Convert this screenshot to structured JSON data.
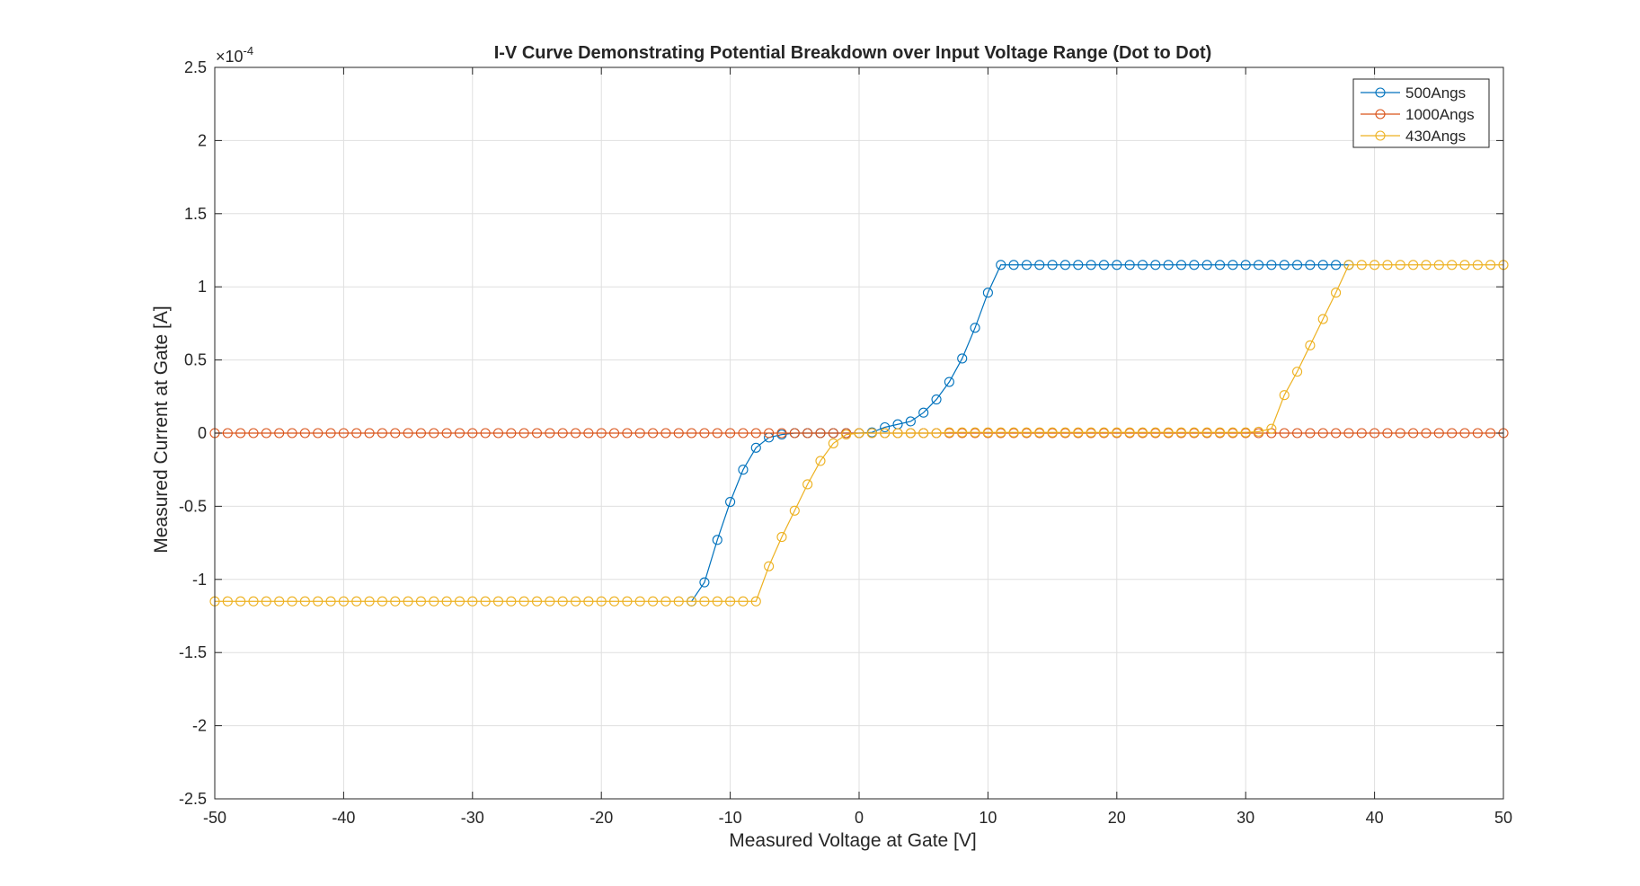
{
  "chart_data": {
    "type": "line",
    "title": "I-V Curve Demonstrating Potential Breakdown over Input Voltage Range (Dot to Dot)",
    "xlabel": "Measured Voltage at Gate [V]",
    "ylabel": "Measured Current at Gate [A]",
    "xlim": [
      -50,
      50
    ],
    "ylim": [
      -2.5,
      2.5
    ],
    "y_exponent_label": "×10",
    "y_exponent_power": "-4",
    "x_ticks": [
      -50,
      -40,
      -30,
      -20,
      -10,
      0,
      10,
      20,
      30,
      40,
      50
    ],
    "x_tick_labels": [
      "-50",
      "-40",
      "-30",
      "-20",
      "-10",
      "0",
      "10",
      "20",
      "30",
      "40",
      "50"
    ],
    "y_ticks": [
      -2.5,
      -2,
      -1.5,
      -1,
      -0.5,
      0,
      0.5,
      1,
      1.5,
      2,
      2.5
    ],
    "y_tick_labels": [
      "-2.5",
      "-2",
      "-1.5",
      "-1",
      "-0.5",
      "0",
      "0.5",
      "1",
      "1.5",
      "2",
      "2.5"
    ],
    "grid": true,
    "legend_position": "top-right",
    "series": [
      {
        "name": "500Angs",
        "color": "#0072BD",
        "marker": "circle",
        "x": [
          -13,
          -12,
          -11,
          -10,
          -9,
          -8,
          -7,
          -6,
          -5,
          -4,
          -3,
          -2,
          -1,
          0,
          1,
          2,
          3,
          4,
          5,
          6,
          7,
          8,
          9,
          10,
          11,
          12,
          13,
          14,
          15,
          16,
          17,
          18,
          19,
          20,
          21,
          22,
          23,
          24,
          25,
          26,
          27,
          28,
          29,
          30,
          31,
          32,
          33,
          34,
          35,
          36,
          37,
          38
        ],
        "y": [
          -1.15,
          -1.02,
          -0.73,
          -0.47,
          -0.25,
          -0.1,
          -0.03,
          -0.01,
          0.0,
          0.0,
          0.0,
          0.0,
          0.0,
          0.0,
          0.005,
          0.04,
          0.06,
          0.08,
          0.14,
          0.23,
          0.35,
          0.51,
          0.72,
          0.96,
          1.15,
          1.15,
          1.15,
          1.15,
          1.15,
          1.15,
          1.15,
          1.15,
          1.15,
          1.15,
          1.15,
          1.15,
          1.15,
          1.15,
          1.15,
          1.15,
          1.15,
          1.15,
          1.15,
          1.15,
          1.15,
          1.15,
          1.15,
          1.15,
          1.15,
          1.15,
          1.15,
          1.15
        ]
      },
      {
        "name": "1000Angs",
        "color": "#D95319",
        "marker": "circle",
        "x": [
          -50,
          -49,
          -48,
          -47,
          -46,
          -45,
          -44,
          -43,
          -42,
          -41,
          -40,
          -39,
          -38,
          -37,
          -36,
          -35,
          -34,
          -33,
          -32,
          -31,
          -30,
          -29,
          -28,
          -27,
          -26,
          -25,
          -24,
          -23,
          -22,
          -21,
          -20,
          -19,
          -18,
          -17,
          -16,
          -15,
          -14,
          -13,
          -12,
          -11,
          -10,
          -9,
          -8,
          -7,
          -6,
          -5,
          -4,
          -3,
          -2,
          -1,
          0,
          1,
          2,
          3,
          4,
          5,
          6,
          7,
          8,
          9,
          10,
          11,
          12,
          13,
          14,
          15,
          16,
          17,
          18,
          19,
          20,
          21,
          22,
          23,
          24,
          25,
          26,
          27,
          28,
          29,
          30,
          31,
          32,
          33,
          34,
          35,
          36,
          37,
          38,
          39,
          40,
          41,
          42,
          43,
          44,
          45,
          46,
          47,
          48,
          49,
          50
        ],
        "y": [
          0,
          0,
          0,
          0,
          0,
          0,
          0,
          0,
          0,
          0,
          0,
          0,
          0,
          0,
          0,
          0,
          0,
          0,
          0,
          0,
          0,
          0,
          0,
          0,
          0,
          0,
          0,
          0,
          0,
          0,
          0,
          0,
          0,
          0,
          0,
          0,
          0,
          0,
          0,
          0,
          0,
          0,
          0,
          0,
          0,
          0,
          0,
          0,
          0,
          0,
          0,
          0,
          0,
          0,
          0,
          0,
          0,
          0,
          0,
          0,
          0,
          0,
          0,
          0,
          0,
          0,
          0,
          0,
          0,
          0,
          0,
          0,
          0,
          0,
          0,
          0,
          0,
          0,
          0,
          0,
          0,
          0,
          0,
          0,
          0,
          0,
          0,
          0,
          0,
          0,
          0,
          0,
          0,
          0,
          0,
          0,
          0,
          0,
          0,
          0,
          0
        ]
      },
      {
        "name": "430Angs",
        "color": "#EDB120",
        "marker": "circle",
        "x": [
          -50,
          -49,
          -48,
          -47,
          -46,
          -45,
          -44,
          -43,
          -42,
          -41,
          -40,
          -39,
          -38,
          -37,
          -36,
          -35,
          -34,
          -33,
          -32,
          -31,
          -30,
          -29,
          -28,
          -27,
          -26,
          -25,
          -24,
          -23,
          -22,
          -21,
          -20,
          -19,
          -18,
          -17,
          -16,
          -15,
          -14,
          -13,
          -12,
          -11,
          -10,
          -9,
          -8,
          -7,
          -6,
          -5,
          -4,
          -3,
          -2,
          -1,
          0,
          1,
          2,
          3,
          4,
          5,
          6,
          7,
          8,
          9,
          10,
          11,
          12,
          13,
          14,
          15,
          16,
          17,
          18,
          19,
          20,
          21,
          22,
          23,
          24,
          25,
          26,
          27,
          28,
          29,
          30,
          31,
          32,
          33,
          34,
          35,
          36,
          37,
          38,
          39,
          40,
          41,
          42,
          43,
          44,
          45,
          46,
          47,
          48,
          49,
          50
        ],
        "y": [
          -1.15,
          -1.15,
          -1.15,
          -1.15,
          -1.15,
          -1.15,
          -1.15,
          -1.15,
          -1.15,
          -1.15,
          -1.15,
          -1.15,
          -1.15,
          -1.15,
          -1.15,
          -1.15,
          -1.15,
          -1.15,
          -1.15,
          -1.15,
          -1.15,
          -1.15,
          -1.15,
          -1.15,
          -1.15,
          -1.15,
          -1.15,
          -1.15,
          -1.15,
          -1.15,
          -1.15,
          -1.15,
          -1.15,
          -1.15,
          -1.15,
          -1.15,
          -1.15,
          -1.15,
          -1.15,
          -1.15,
          -1.15,
          -1.15,
          -1.15,
          -0.91,
          -0.71,
          -0.53,
          -0.35,
          -0.19,
          -0.07,
          -0.01,
          0.0,
          0.0,
          0.0,
          0.0,
          0.0,
          0.0,
          0.0,
          0.005,
          0.005,
          0.005,
          0.005,
          0.005,
          0.005,
          0.005,
          0.005,
          0.005,
          0.005,
          0.005,
          0.005,
          0.005,
          0.005,
          0.005,
          0.005,
          0.005,
          0.005,
          0.005,
          0.005,
          0.005,
          0.005,
          0.005,
          0.005,
          0.01,
          0.03,
          0.26,
          0.42,
          0.6,
          0.78,
          0.96,
          1.15,
          1.15,
          1.15,
          1.15,
          1.15,
          1.15,
          1.15,
          1.15,
          1.15,
          1.15,
          1.15,
          1.15,
          1.15
        ]
      }
    ]
  }
}
